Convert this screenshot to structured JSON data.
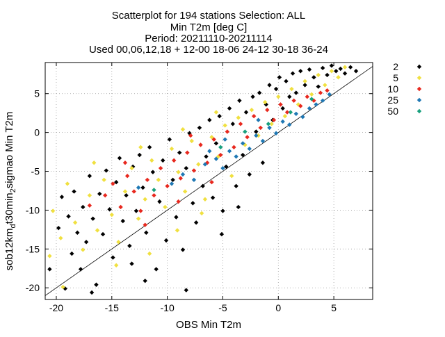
{
  "chart_data": {
    "type": "scatter",
    "title_lines": [
      "Scatterplot for  194 stations Selection: ALL",
      "Min T2m [deg C]",
      "Period: 20211110-20211114",
      "Used 00,06,12,18 + 12-00 18-06 24-12 30-18 36-24"
    ],
    "xlabel": "OBS Min T2m",
    "ylabel": "sob12km",
    "ylabel_sub1": "d",
    "ylabel_mid": "t30min",
    "ylabel_sub2": "2",
    "ylabel_tail": "sigmao Min T2m",
    "xlim": [
      -21,
      8.5
    ],
    "ylim": [
      -21.5,
      9
    ],
    "xticks": [
      -20,
      -15,
      -10,
      -5,
      0,
      5
    ],
    "yticks": [
      -20,
      -15,
      -10,
      -5,
      0,
      5
    ],
    "grid": true,
    "diagonal": true,
    "legend_position": "right, outside",
    "series": [
      {
        "name": "2",
        "color": "#000000",
        "marker": "diamond"
      },
      {
        "name": "5",
        "color": "#f0e040",
        "marker": "diamond"
      },
      {
        "name": "10",
        "color": "#e8281e",
        "marker": "diamond"
      },
      {
        "name": "25",
        "color": "#1f78b4",
        "marker": "diamond"
      },
      {
        "name": "50",
        "color": "#18a07e",
        "marker": "diamond"
      }
    ],
    "points": [
      {
        "series": 0,
        "x": -19.8,
        "y": -12.3
      },
      {
        "series": 0,
        "x": -19.5,
        "y": -8.3
      },
      {
        "series": 0,
        "x": -18.9,
        "y": -10.8
      },
      {
        "series": 0,
        "x": -18.6,
        "y": -15.6
      },
      {
        "series": 0,
        "x": -18.4,
        "y": -7.6
      },
      {
        "series": 0,
        "x": -18.1,
        "y": -12.9
      },
      {
        "series": 0,
        "x": -17.8,
        "y": -17.6
      },
      {
        "series": 0,
        "x": -17.6,
        "y": -9.6
      },
      {
        "series": 0,
        "x": -17.3,
        "y": -14.1
      },
      {
        "series": 0,
        "x": -17.0,
        "y": -5.6
      },
      {
        "series": 0,
        "x": -16.7,
        "y": -11.1
      },
      {
        "series": 0,
        "x": -16.4,
        "y": -19.6
      },
      {
        "series": 0,
        "x": -16.1,
        "y": -7.9
      },
      {
        "series": 0,
        "x": -15.8,
        "y": -13.1
      },
      {
        "series": 0,
        "x": -15.5,
        "y": -4.9
      },
      {
        "series": 0,
        "x": -15.2,
        "y": -9.9
      },
      {
        "series": 0,
        "x": -14.9,
        "y": -16.1
      },
      {
        "series": 0,
        "x": -14.6,
        "y": -6.4
      },
      {
        "series": 0,
        "x": -14.3,
        "y": -3.3
      },
      {
        "series": 0,
        "x": -14.0,
        "y": -11.4
      },
      {
        "series": 0,
        "x": -13.7,
        "y": -8.1
      },
      {
        "series": 0,
        "x": -13.4,
        "y": -14.6
      },
      {
        "series": 0,
        "x": -13.1,
        "y": -4.4
      },
      {
        "series": 0,
        "x": -12.8,
        "y": -10.1
      },
      {
        "series": 0,
        "x": -12.5,
        "y": -2.9
      },
      {
        "series": 0,
        "x": -12.2,
        "y": -7.1
      },
      {
        "series": 0,
        "x": -11.9,
        "y": -12.9
      },
      {
        "series": 0,
        "x": -11.6,
        "y": -1.9
      },
      {
        "series": 0,
        "x": -11.3,
        "y": -5.1
      },
      {
        "series": 0,
        "x": -11.0,
        "y": -17.6
      },
      {
        "series": 0,
        "x": -10.7,
        "y": -8.9
      },
      {
        "series": 0,
        "x": -10.4,
        "y": -3.6
      },
      {
        "series": 0,
        "x": -10.1,
        "y": -13.9
      },
      {
        "series": 0,
        "x": -9.8,
        "y": -0.9
      },
      {
        "series": 0,
        "x": -9.5,
        "y": -6.1
      },
      {
        "series": 0,
        "x": -9.2,
        "y": -10.9
      },
      {
        "series": 0,
        "x": -8.9,
        "y": -2.6
      },
      {
        "series": 0,
        "x": -8.6,
        "y": -15.1
      },
      {
        "series": 0,
        "x": -8.3,
        "y": -4.6
      },
      {
        "series": 0,
        "x": -8.0,
        "y": -0.1
      },
      {
        "series": 0,
        "x": -7.7,
        "y": -9.1
      },
      {
        "series": 0,
        "x": -7.4,
        "y": -11.6
      },
      {
        "series": 0,
        "x": -7.1,
        "y": 0.6
      },
      {
        "series": 0,
        "x": -6.8,
        "y": -6.9
      },
      {
        "series": 0,
        "x": -6.5,
        "y": -3.1
      },
      {
        "series": 0,
        "x": -6.2,
        "y": 1.6
      },
      {
        "series": 0,
        "x": -5.9,
        "y": -8.4
      },
      {
        "series": 0,
        "x": -5.6,
        "y": -1.4
      },
      {
        "series": 0,
        "x": -5.3,
        "y": 2.1
      },
      {
        "series": 0,
        "x": -5.0,
        "y": -10.1
      },
      {
        "series": 0,
        "x": -4.7,
        "y": -4.4
      },
      {
        "series": 0,
        "x": -4.4,
        "y": 3.1
      },
      {
        "series": 0,
        "x": -4.1,
        "y": 1.1
      },
      {
        "series": 0,
        "x": -3.8,
        "y": -6.9
      },
      {
        "series": 0,
        "x": -3.5,
        "y": 4.1
      },
      {
        "series": 0,
        "x": -3.2,
        "y": -2.9
      },
      {
        "series": 0,
        "x": -2.9,
        "y": 2.6
      },
      {
        "series": 0,
        "x": -2.6,
        "y": -5.4
      },
      {
        "series": 0,
        "x": -2.3,
        "y": 4.6
      },
      {
        "series": 0,
        "x": -2.0,
        "y": 0.1
      },
      {
        "series": 0,
        "x": -1.7,
        "y": 5.1
      },
      {
        "series": 0,
        "x": -1.4,
        "y": -3.9
      },
      {
        "series": 0,
        "x": -1.1,
        "y": 3.6
      },
      {
        "series": 0,
        "x": -0.8,
        "y": 6.1
      },
      {
        "series": 0,
        "x": -0.5,
        "y": 1.6
      },
      {
        "series": 0,
        "x": -0.2,
        "y": 5.6
      },
      {
        "series": 0,
        "x": 0.1,
        "y": 7.1
      },
      {
        "series": 0,
        "x": 0.4,
        "y": 3.1
      },
      {
        "series": 0,
        "x": 0.7,
        "y": 6.6
      },
      {
        "series": 0,
        "x": 1.0,
        "y": 4.6
      },
      {
        "series": 0,
        "x": 1.3,
        "y": 7.6
      },
      {
        "series": 0,
        "x": 1.6,
        "y": 5.1
      },
      {
        "series": 0,
        "x": 2.0,
        "y": 7.9
      },
      {
        "series": 0,
        "x": 2.4,
        "y": 6.1
      },
      {
        "series": 0,
        "x": 2.8,
        "y": 8.1
      },
      {
        "series": 0,
        "x": 3.2,
        "y": 7.1
      },
      {
        "series": 0,
        "x": 3.6,
        "y": 5.9
      },
      {
        "series": 0,
        "x": 4.0,
        "y": 8.3
      },
      {
        "series": 0,
        "x": 4.4,
        "y": 7.4
      },
      {
        "series": 0,
        "x": 4.8,
        "y": 8.6
      },
      {
        "series": 0,
        "x": 5.2,
        "y": 7.9
      },
      {
        "series": 0,
        "x": 5.6,
        "y": 8.2
      },
      {
        "series": 0,
        "x": 6.0,
        "y": 7.6
      },
      {
        "series": 0,
        "x": 6.5,
        "y": 8.4
      },
      {
        "series": 0,
        "x": 7.0,
        "y": 7.9
      },
      {
        "series": 0,
        "x": -20.6,
        "y": -17.6
      },
      {
        "series": 0,
        "x": -19.2,
        "y": -20.1
      },
      {
        "series": 0,
        "x": -16.8,
        "y": -20.6
      },
      {
        "series": 0,
        "x": -12.0,
        "y": -19.1
      },
      {
        "series": 0,
        "x": -8.3,
        "y": -20.3
      },
      {
        "series": 0,
        "x": -13.2,
        "y": -16.9
      },
      {
        "series": 0,
        "x": -5.1,
        "y": -13.1
      },
      {
        "series": 0,
        "x": -3.6,
        "y": -9.6
      },
      {
        "series": 1,
        "x": -20.3,
        "y": -10.1
      },
      {
        "series": 1,
        "x": -19.6,
        "y": -13.6
      },
      {
        "series": 1,
        "x": -19.0,
        "y": -6.6
      },
      {
        "series": 1,
        "x": -18.3,
        "y": -11.6
      },
      {
        "series": 1,
        "x": -17.6,
        "y": -15.1
      },
      {
        "series": 1,
        "x": -17.0,
        "y": -8.1
      },
      {
        "series": 1,
        "x": -16.3,
        "y": -12.6
      },
      {
        "series": 1,
        "x": -15.7,
        "y": -6.1
      },
      {
        "series": 1,
        "x": -15.0,
        "y": -10.6
      },
      {
        "series": 1,
        "x": -14.4,
        "y": -14.1
      },
      {
        "series": 1,
        "x": -13.8,
        "y": -7.6
      },
      {
        "series": 1,
        "x": -13.2,
        "y": -4.6
      },
      {
        "series": 1,
        "x": -12.6,
        "y": -11.1
      },
      {
        "series": 1,
        "x": -12.0,
        "y": -8.6
      },
      {
        "series": 1,
        "x": -11.4,
        "y": -3.6
      },
      {
        "series": 1,
        "x": -10.8,
        "y": -6.1
      },
      {
        "series": 1,
        "x": -10.2,
        "y": -9.6
      },
      {
        "series": 1,
        "x": -9.6,
        "y": -2.1
      },
      {
        "series": 1,
        "x": -9.0,
        "y": -5.1
      },
      {
        "series": 1,
        "x": -8.4,
        "y": -7.6
      },
      {
        "series": 1,
        "x": -7.8,
        "y": -1.1
      },
      {
        "series": 1,
        "x": -7.2,
        "y": -4.1
      },
      {
        "series": 1,
        "x": -6.6,
        "y": -8.6
      },
      {
        "series": 1,
        "x": -6.0,
        "y": -0.6
      },
      {
        "series": 1,
        "x": -5.4,
        "y": -3.1
      },
      {
        "series": 1,
        "x": -4.8,
        "y": 0.9
      },
      {
        "series": 1,
        "x": -4.2,
        "y": -5.6
      },
      {
        "series": 1,
        "x": -3.6,
        "y": 1.9
      },
      {
        "series": 1,
        "x": -3.0,
        "y": -1.6
      },
      {
        "series": 1,
        "x": -2.4,
        "y": 2.9
      },
      {
        "series": 1,
        "x": -1.8,
        "y": -0.4
      },
      {
        "series": 1,
        "x": -1.2,
        "y": 3.9
      },
      {
        "series": 1,
        "x": -0.6,
        "y": 1.1
      },
      {
        "series": 1,
        "x": 0.0,
        "y": 4.6
      },
      {
        "series": 1,
        "x": 0.6,
        "y": 2.1
      },
      {
        "series": 1,
        "x": 1.2,
        "y": 5.6
      },
      {
        "series": 1,
        "x": 1.8,
        "y": 3.6
      },
      {
        "series": 1,
        "x": 2.4,
        "y": 6.6
      },
      {
        "series": 1,
        "x": 3.0,
        "y": 4.9
      },
      {
        "series": 1,
        "x": 3.6,
        "y": 7.4
      },
      {
        "series": 1,
        "x": 4.2,
        "y": 6.1
      },
      {
        "series": 1,
        "x": 4.8,
        "y": 7.9
      },
      {
        "series": 1,
        "x": 5.4,
        "y": 7.1
      },
      {
        "series": 1,
        "x": 6.0,
        "y": 8.4
      },
      {
        "series": 1,
        "x": -20.6,
        "y": -15.9
      },
      {
        "series": 1,
        "x": -19.4,
        "y": -19.9
      },
      {
        "series": 1,
        "x": -14.6,
        "y": -17.1
      },
      {
        "series": 1,
        "x": -11.6,
        "y": -15.6
      },
      {
        "series": 1,
        "x": -9.1,
        "y": -12.6
      },
      {
        "series": 1,
        "x": -6.9,
        "y": -10.4
      },
      {
        "series": 1,
        "x": -12.4,
        "y": -1.9
      },
      {
        "series": 1,
        "x": -8.6,
        "y": 0.4
      },
      {
        "series": 1,
        "x": -16.6,
        "y": -3.9
      },
      {
        "series": 1,
        "x": -5.6,
        "y": 2.6
      },
      {
        "series": 2,
        "x": -15.6,
        "y": -8.1
      },
      {
        "series": 2,
        "x": -14.9,
        "y": -6.6
      },
      {
        "series": 2,
        "x": -14.2,
        "y": -9.6
      },
      {
        "series": 2,
        "x": -13.6,
        "y": -5.6
      },
      {
        "series": 2,
        "x": -13.0,
        "y": -7.6
      },
      {
        "series": 2,
        "x": -12.4,
        "y": -10.1
      },
      {
        "series": 2,
        "x": -11.8,
        "y": -6.1
      },
      {
        "series": 2,
        "x": -11.2,
        "y": -8.1
      },
      {
        "series": 2,
        "x": -10.6,
        "y": -4.6
      },
      {
        "series": 2,
        "x": -10.0,
        "y": -6.9
      },
      {
        "series": 2,
        "x": -9.4,
        "y": -3.6
      },
      {
        "series": 2,
        "x": -8.8,
        "y": -5.9
      },
      {
        "series": 2,
        "x": -8.2,
        "y": -2.6
      },
      {
        "series": 2,
        "x": -7.6,
        "y": -4.9
      },
      {
        "series": 2,
        "x": -7.0,
        "y": -1.6
      },
      {
        "series": 2,
        "x": -6.4,
        "y": -3.9
      },
      {
        "series": 2,
        "x": -5.8,
        "y": -0.9
      },
      {
        "series": 2,
        "x": -5.2,
        "y": -2.9
      },
      {
        "series": 2,
        "x": -4.6,
        "y": 0.1
      },
      {
        "series": 2,
        "x": -4.0,
        "y": -1.9
      },
      {
        "series": 2,
        "x": -3.4,
        "y": 1.1
      },
      {
        "series": 2,
        "x": -2.8,
        "y": -0.6
      },
      {
        "series": 2,
        "x": -2.2,
        "y": 2.1
      },
      {
        "series": 2,
        "x": -1.6,
        "y": 0.6
      },
      {
        "series": 2,
        "x": -1.0,
        "y": 2.9
      },
      {
        "series": 2,
        "x": -0.4,
        "y": 1.6
      },
      {
        "series": 2,
        "x": 0.2,
        "y": 3.6
      },
      {
        "series": 2,
        "x": 0.8,
        "y": 2.6
      },
      {
        "series": 2,
        "x": 1.4,
        "y": 4.1
      },
      {
        "series": 2,
        "x": 2.0,
        "y": 3.4
      },
      {
        "series": 2,
        "x": 2.6,
        "y": 4.6
      },
      {
        "series": 2,
        "x": 3.2,
        "y": 4.1
      },
      {
        "series": 2,
        "x": 3.8,
        "y": 5.1
      },
      {
        "series": 2,
        "x": 4.4,
        "y": 5.4
      },
      {
        "series": 2,
        "x": -17.0,
        "y": -9.4
      },
      {
        "series": 2,
        "x": -12.0,
        "y": -11.9
      },
      {
        "series": 2,
        "x": -9.0,
        "y": -8.9
      },
      {
        "series": 2,
        "x": -6.0,
        "y": -6.4
      },
      {
        "series": 2,
        "x": -13.8,
        "y": -3.9
      },
      {
        "series": 2,
        "x": -7.9,
        "y": -0.4
      },
      {
        "series": 3,
        "x": -9.6,
        "y": -6.6
      },
      {
        "series": 3,
        "x": -8.6,
        "y": -5.4
      },
      {
        "series": 3,
        "x": -7.6,
        "y": -6.1
      },
      {
        "series": 3,
        "x": -6.6,
        "y": -4.1
      },
      {
        "series": 3,
        "x": -5.6,
        "y": -3.4
      },
      {
        "series": 3,
        "x": -5.0,
        "y": -4.6
      },
      {
        "series": 3,
        "x": -4.4,
        "y": -2.4
      },
      {
        "series": 3,
        "x": -3.8,
        "y": -3.1
      },
      {
        "series": 3,
        "x": -3.2,
        "y": -1.4
      },
      {
        "series": 3,
        "x": -2.6,
        "y": -2.1
      },
      {
        "series": 3,
        "x": -2.0,
        "y": -0.4
      },
      {
        "series": 3,
        "x": -1.4,
        "y": -1.1
      },
      {
        "series": 3,
        "x": -0.8,
        "y": 0.6
      },
      {
        "series": 3,
        "x": -0.2,
        "y": -0.1
      },
      {
        "series": 3,
        "x": 0.4,
        "y": 1.4
      },
      {
        "series": 3,
        "x": 1.0,
        "y": 1.0
      },
      {
        "series": 3,
        "x": 1.6,
        "y": 2.4
      },
      {
        "series": 3,
        "x": 2.2,
        "y": 2.0
      },
      {
        "series": 3,
        "x": 2.8,
        "y": 3.1
      },
      {
        "series": 3,
        "x": 3.4,
        "y": 3.6
      },
      {
        "series": 3,
        "x": 4.0,
        "y": 4.1
      },
      {
        "series": 3,
        "x": 4.6,
        "y": 4.9
      },
      {
        "series": 3,
        "x": -4.8,
        "y": -0.9
      },
      {
        "series": 3,
        "x": -6.2,
        "y": -2.4
      },
      {
        "series": 3,
        "x": -1.8,
        "y": 1.6
      },
      {
        "series": 3,
        "x": -12.6,
        "y": -7.1
      },
      {
        "series": 4,
        "x": -5.2,
        "y": -1.9
      },
      {
        "series": 4,
        "x": -3.0,
        "y": 0.1
      },
      {
        "series": 4,
        "x": -0.9,
        "y": 1.1
      },
      {
        "series": 4,
        "x": 1.1,
        "y": 2.6
      },
      {
        "series": 4,
        "x": 3.0,
        "y": 4.3
      },
      {
        "series": 4,
        "x": -11.2,
        "y": -7.4
      }
    ]
  }
}
